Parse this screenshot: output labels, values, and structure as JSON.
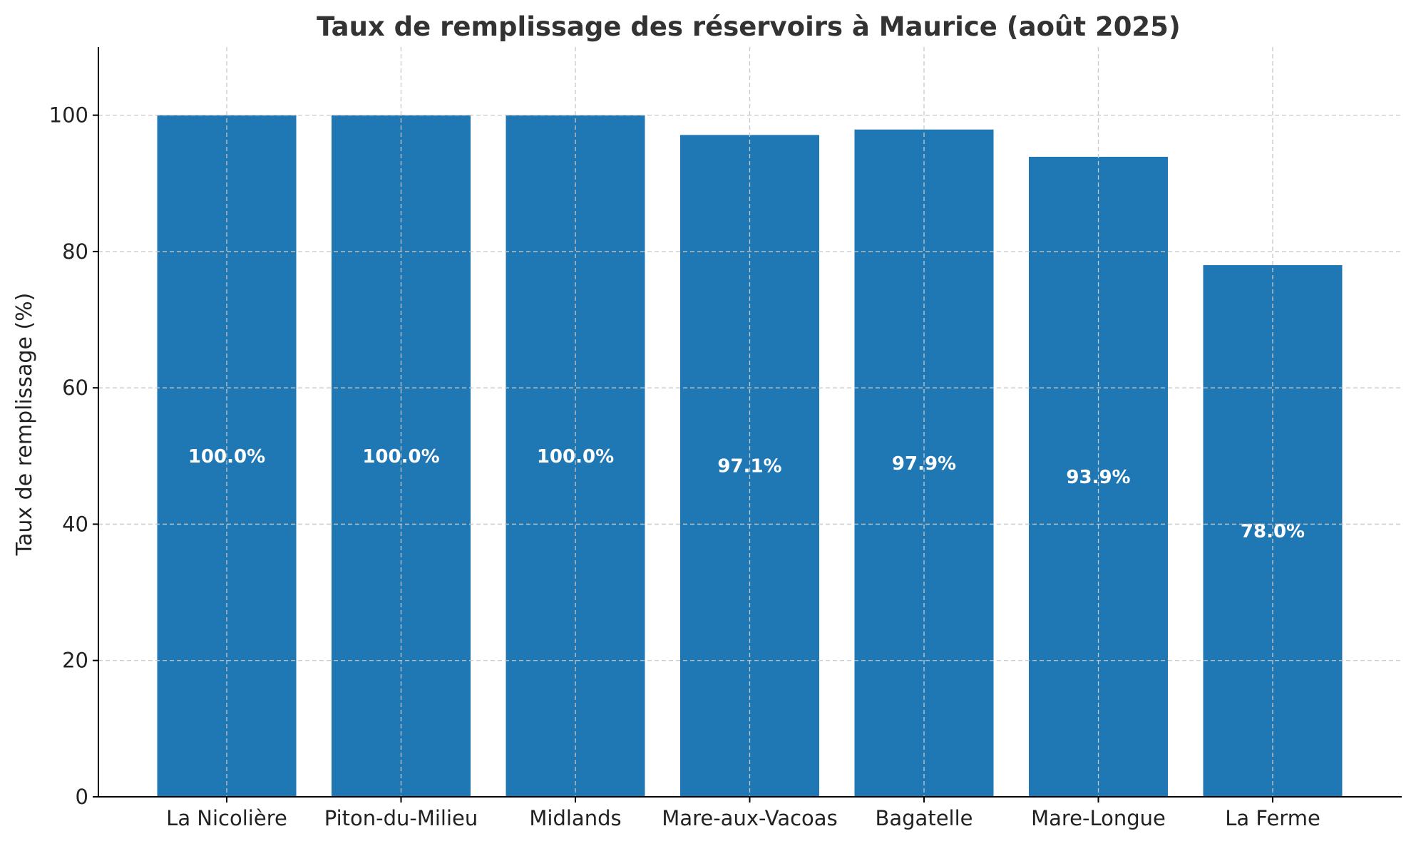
{
  "chart_data": {
    "type": "bar",
    "title": "Taux de remplissage des réservoirs à Maurice (août 2025)",
    "xlabel": "",
    "ylabel": "Taux de remplissage (%)",
    "categories": [
      "La Nicolière",
      "Piton-du-Milieu",
      "Midlands",
      "Mare-aux-Vacoas",
      "Bagatelle",
      "Mare-Longue",
      "La Ferme"
    ],
    "values": [
      100.0,
      100.0,
      100.0,
      97.1,
      97.9,
      93.9,
      78.0
    ],
    "data_labels": [
      "100.0%",
      "100.0%",
      "100.0%",
      "97.1%",
      "97.9%",
      "93.9%",
      "78.0%"
    ],
    "yticks": [
      0,
      20,
      40,
      60,
      80,
      100
    ],
    "ytick_labels": [
      "0",
      "20",
      "40",
      "60",
      "80",
      "100"
    ],
    "ylim": [
      0,
      110
    ],
    "grid": true,
    "bar_color": "#1f77b4",
    "legend": "none"
  }
}
